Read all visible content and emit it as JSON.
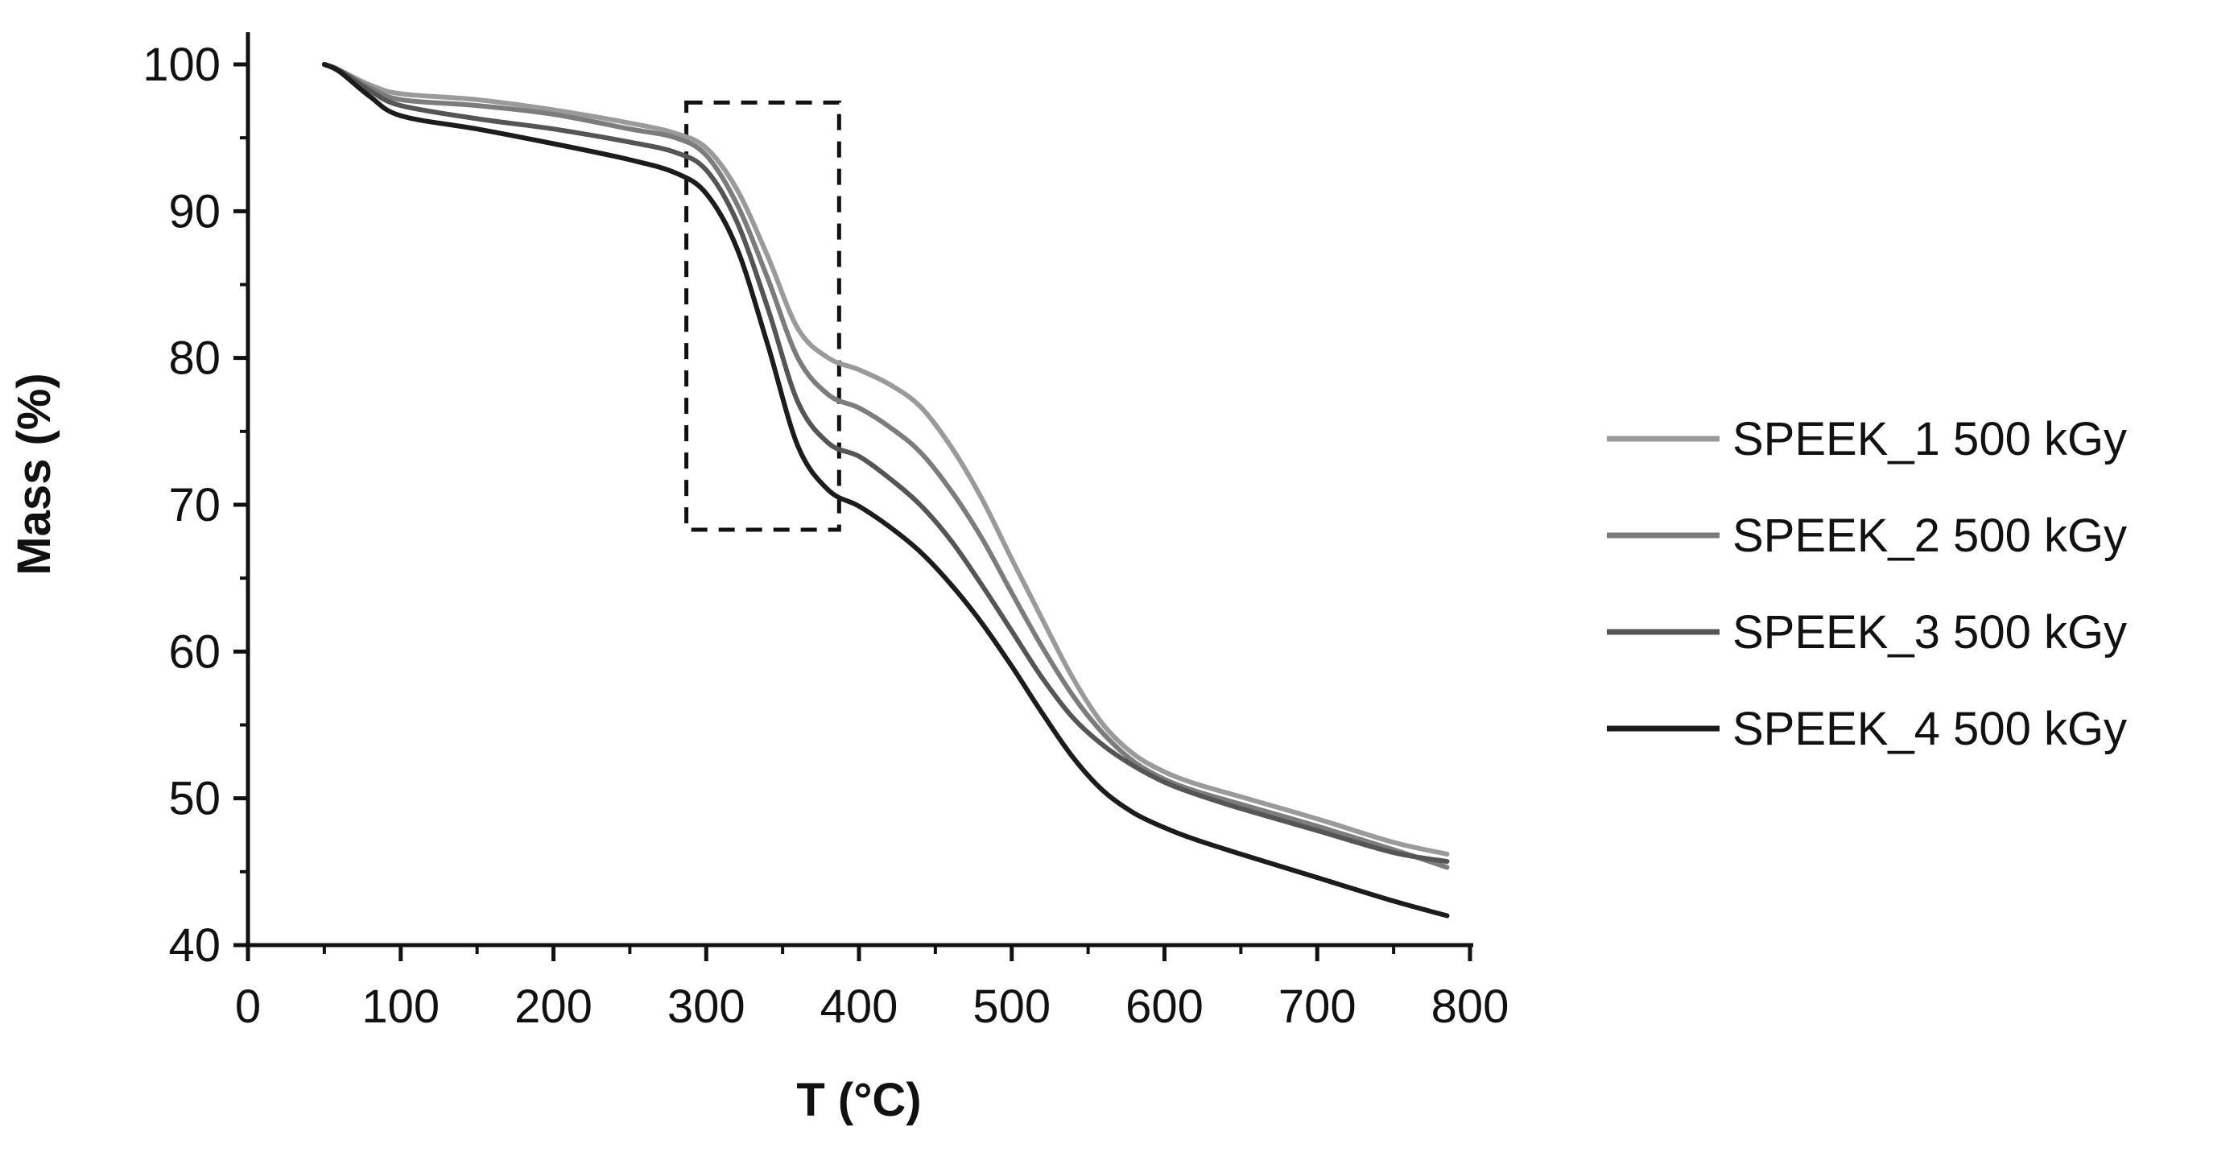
{
  "chart_data": {
    "type": "line",
    "title": "",
    "xlabel": "T (°C)",
    "ylabel": "Mass (%)",
    "xlim": [
      0,
      800
    ],
    "ylim": [
      40,
      100
    ],
    "xticks": [
      0,
      100,
      200,
      300,
      400,
      500,
      600,
      700,
      800
    ],
    "yticks": [
      40,
      50,
      60,
      70,
      80,
      90,
      100
    ],
    "xtick_labels": [
      "0",
      "100",
      "200",
      "300",
      "400",
      "500",
      "600",
      "700",
      "800"
    ],
    "ytick_labels": [
      "40",
      "50",
      "60",
      "70",
      "80",
      "90",
      "100"
    ],
    "grid": false,
    "legend_position": "right",
    "highlight_box": {
      "style": "dashed",
      "x_range": [
        287,
        387
      ],
      "y_range": [
        68.3,
        97.4
      ]
    },
    "series": [
      {
        "name": "SPEEK_1 500 kGy",
        "color": "#9a9a9a",
        "x": [
          50,
          60,
          80,
          100,
          150,
          200,
          250,
          280,
          300,
          320,
          340,
          360,
          380,
          400,
          420,
          440,
          460,
          480,
          500,
          520,
          540,
          560,
          580,
          600,
          620,
          650,
          700,
          750,
          785
        ],
        "y": [
          100,
          99.6,
          98.6,
          98.0,
          97.6,
          96.9,
          96.0,
          95.3,
          94.3,
          91.5,
          87,
          82,
          80,
          79.2,
          78.2,
          76.7,
          74.0,
          70.5,
          66.3,
          62.2,
          58.2,
          55.0,
          53.0,
          51.8,
          51.0,
          50.1,
          48.6,
          47.0,
          46.2
        ]
      },
      {
        "name": "SPEEK_2 500 kGy",
        "color": "#7c7c7c",
        "x": [
          50,
          60,
          80,
          100,
          150,
          200,
          250,
          280,
          300,
          320,
          340,
          360,
          380,
          400,
          420,
          440,
          460,
          480,
          500,
          520,
          540,
          560,
          580,
          600,
          620,
          650,
          700,
          750,
          785
        ],
        "y": [
          100,
          99.6,
          98.4,
          97.6,
          97.2,
          96.6,
          95.6,
          95.0,
          93.8,
          90.5,
          85.5,
          80,
          77.5,
          76.6,
          75.3,
          73.6,
          71.0,
          67.8,
          64.0,
          60.3,
          57.0,
          54.4,
          52.5,
          51.3,
          50.5,
          49.6,
          48.1,
          46.5,
          45.3
        ]
      },
      {
        "name": "SPEEK_3 500 kGy",
        "color": "#555555",
        "x": [
          50,
          60,
          80,
          100,
          150,
          200,
          250,
          280,
          300,
          320,
          340,
          360,
          380,
          400,
          420,
          440,
          460,
          480,
          500,
          520,
          540,
          560,
          580,
          600,
          620,
          650,
          700,
          750,
          785
        ],
        "y": [
          100,
          99.6,
          98.2,
          97.2,
          96.3,
          95.6,
          94.7,
          94.0,
          92.8,
          89.3,
          83.5,
          77,
          74.2,
          73.3,
          71.8,
          70.0,
          67.6,
          64.6,
          61.4,
          58.2,
          55.5,
          53.6,
          52.2,
          51.1,
          50.3,
          49.3,
          47.8,
          46.3,
          45.7
        ]
      },
      {
        "name": "SPEEK_4 500 kGy",
        "color": "#1c1c1c",
        "x": [
          50,
          60,
          80,
          100,
          150,
          200,
          250,
          280,
          300,
          320,
          340,
          360,
          380,
          400,
          420,
          440,
          460,
          480,
          500,
          520,
          540,
          560,
          580,
          600,
          620,
          650,
          700,
          750,
          785
        ],
        "y": [
          100,
          99.5,
          97.8,
          96.5,
          95.6,
          94.6,
          93.5,
          92.6,
          91.2,
          87.5,
          81,
          74,
          71.0,
          69.9,
          68.5,
          66.8,
          64.6,
          62.0,
          59.0,
          55.8,
          52.8,
          50.5,
          49.0,
          48.0,
          47.2,
          46.2,
          44.6,
          43.0,
          42.0
        ]
      }
    ]
  }
}
